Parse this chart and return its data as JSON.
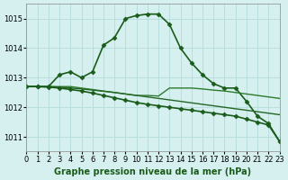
{
  "title": "Graphe pression niveau de la mer (hPa)",
  "background_color": "#d6f0f0",
  "grid_color": "#b8dede",
  "xlim": [
    0,
    23
  ],
  "ylim": [
    1010.5,
    1015.5
  ],
  "yticks": [
    1011,
    1012,
    1013,
    1014,
    1015
  ],
  "xticks": [
    0,
    1,
    2,
    3,
    4,
    5,
    6,
    7,
    8,
    9,
    10,
    11,
    12,
    13,
    14,
    15,
    16,
    17,
    18,
    19,
    20,
    21,
    22,
    23
  ],
  "series": [
    {
      "x": [
        0,
        1,
        2,
        3,
        4,
        5,
        6,
        7,
        8,
        9,
        10,
        11,
        12,
        13,
        14,
        15,
        16,
        17,
        18,
        19,
        20,
        21,
        22,
        23
      ],
      "y": [
        1012.7,
        1012.7,
        1012.7,
        1013.1,
        1013.2,
        1013.0,
        1013.2,
        1014.1,
        1014.35,
        1015.0,
        1015.1,
        1015.15,
        1015.15,
        1014.8,
        1014.0,
        1013.5,
        1013.1,
        1012.8,
        1012.65,
        1012.65,
        1012.2,
        1011.7,
        1011.45,
        1010.85
      ],
      "marker": "D",
      "linewidth": 1.2,
      "markersize": 2.5,
      "color": "#1a5c1a",
      "use_marker": true
    },
    {
      "x": [
        0,
        1,
        2,
        3,
        4,
        5,
        6,
        7,
        8,
        9,
        10,
        11,
        12,
        13,
        14,
        15,
        16,
        17,
        18,
        19,
        20,
        21,
        22,
        23
      ],
      "y": [
        1012.7,
        1012.7,
        1012.7,
        1012.7,
        1012.7,
        1012.65,
        1012.6,
        1012.55,
        1012.5,
        1012.45,
        1012.4,
        1012.4,
        1012.38,
        1012.65,
        1012.65,
        1012.65,
        1012.62,
        1012.58,
        1012.55,
        1012.5,
        1012.45,
        1012.4,
        1012.35,
        1012.3
      ],
      "marker": null,
      "linewidth": 1.0,
      "markersize": 0,
      "color": "#2d7a2d",
      "use_marker": false
    },
    {
      "x": [
        0,
        1,
        2,
        3,
        4,
        5,
        6,
        7,
        8,
        9,
        10,
        11,
        12,
        13,
        14,
        15,
        16,
        17,
        18,
        19,
        20,
        21,
        22,
        23
      ],
      "y": [
        1012.7,
        1012.7,
        1012.7,
        1012.68,
        1012.65,
        1012.62,
        1012.58,
        1012.54,
        1012.5,
        1012.45,
        1012.4,
        1012.35,
        1012.3,
        1012.25,
        1012.2,
        1012.15,
        1012.1,
        1012.05,
        1012.0,
        1011.95,
        1011.9,
        1011.85,
        1011.8,
        1011.75
      ],
      "marker": null,
      "linewidth": 1.0,
      "markersize": 0,
      "color": "#246624",
      "use_marker": false
    },
    {
      "x": [
        0,
        1,
        2,
        3,
        4,
        5,
        6,
        7,
        8,
        9,
        10,
        11,
        12,
        13,
        14,
        15,
        16,
        17,
        18,
        19,
        20,
        21,
        22,
        23
      ],
      "y": [
        1012.7,
        1012.7,
        1012.68,
        1012.65,
        1012.6,
        1012.55,
        1012.48,
        1012.4,
        1012.32,
        1012.24,
        1012.16,
        1012.1,
        1012.05,
        1012.0,
        1011.95,
        1011.9,
        1011.85,
        1011.8,
        1011.75,
        1011.7,
        1011.6,
        1011.5,
        1011.4,
        1010.85
      ],
      "marker": "D",
      "linewidth": 1.2,
      "markersize": 2.5,
      "color": "#1a5c1a",
      "use_marker": true
    }
  ],
  "title_fontsize": 7,
  "tick_fontsize": 6
}
